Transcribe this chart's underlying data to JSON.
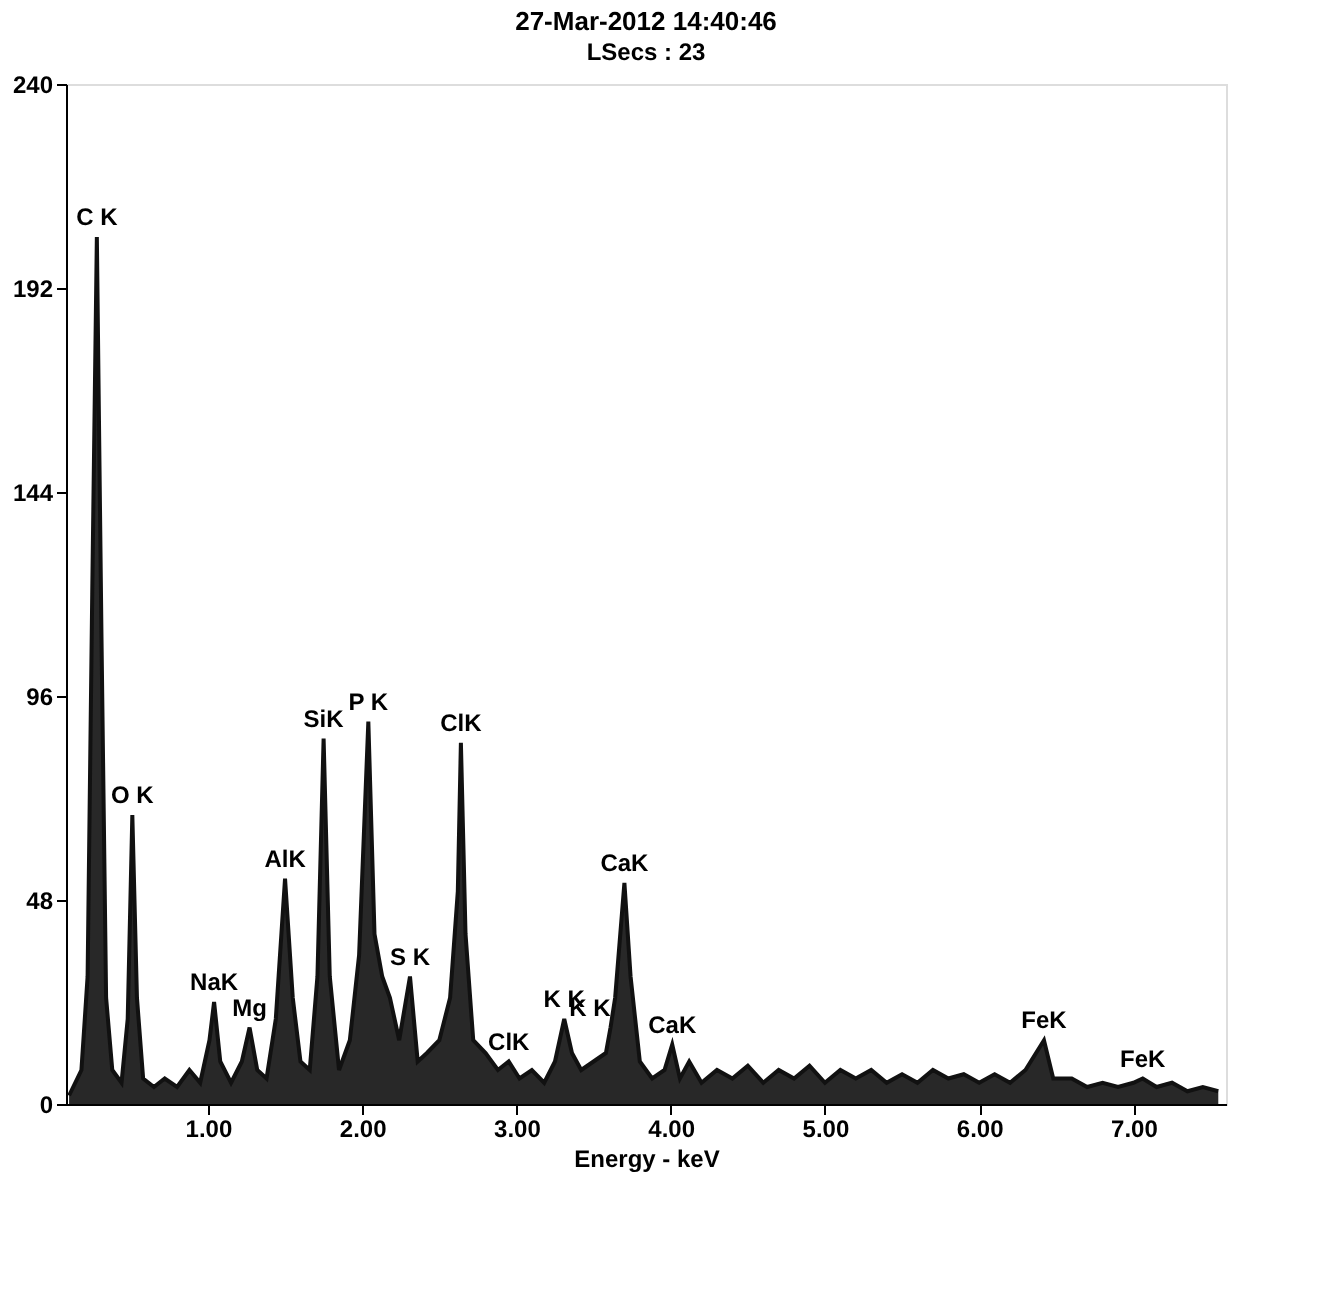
{
  "chart_data": {
    "type": "area",
    "title": "27-Mar-2012 14:40:46",
    "subtitle": "LSecs : 23",
    "xlabel": "Energy - keV",
    "xlim": [
      0.08,
      7.6
    ],
    "xticks": [
      {
        "value": 1,
        "label": "1.00"
      },
      {
        "value": 2,
        "label": "2.00"
      },
      {
        "value": 3,
        "label": "3.00"
      },
      {
        "value": 4,
        "label": "4.00"
      },
      {
        "value": 5,
        "label": "5.00"
      },
      {
        "value": 6,
        "label": "6.00"
      },
      {
        "value": 7,
        "label": "7.00"
      }
    ],
    "ylim": [
      0,
      240
    ],
    "yticks": [
      0,
      48,
      96,
      144,
      192,
      240
    ],
    "grid": false,
    "series": [
      {
        "color": "#111111",
        "x": [
          0.1,
          0.18,
          0.22,
          0.25,
          0.28,
          0.31,
          0.34,
          0.38,
          0.44,
          0.48,
          0.51,
          0.54,
          0.58,
          0.65,
          0.72,
          0.8,
          0.88,
          0.95,
          1.01,
          1.04,
          1.08,
          1.15,
          1.22,
          1.27,
          1.32,
          1.38,
          1.44,
          1.5,
          1.55,
          1.6,
          1.66,
          1.71,
          1.75,
          1.79,
          1.85,
          1.92,
          1.98,
          2.04,
          2.08,
          2.13,
          2.18,
          2.24,
          2.31,
          2.36,
          2.42,
          2.5,
          2.57,
          2.62,
          2.64,
          2.67,
          2.72,
          2.8,
          2.88,
          2.95,
          3.02,
          3.1,
          3.18,
          3.25,
          3.31,
          3.36,
          3.42,
          3.5,
          3.58,
          3.61,
          3.64,
          3.7,
          3.74,
          3.8,
          3.88,
          3.96,
          4.01,
          4.06,
          4.12,
          4.2,
          4.3,
          4.4,
          4.5,
          4.6,
          4.7,
          4.8,
          4.9,
          5.0,
          5.1,
          5.2,
          5.3,
          5.4,
          5.5,
          5.6,
          5.7,
          5.8,
          5.9,
          6.0,
          6.1,
          6.2,
          6.3,
          6.42,
          6.48,
          6.6,
          6.7,
          6.8,
          6.9,
          7.0,
          7.06,
          7.15,
          7.25,
          7.35,
          7.45,
          7.55
        ],
        "values": [
          2,
          8,
          30,
          120,
          204,
          110,
          25,
          8,
          5,
          20,
          68,
          25,
          6,
          4,
          6,
          4,
          8,
          5,
          15,
          24,
          10,
          5,
          10,
          18,
          8,
          6,
          20,
          53,
          25,
          10,
          8,
          30,
          86,
          30,
          8,
          15,
          35,
          90,
          40,
          30,
          25,
          15,
          30,
          10,
          12,
          15,
          25,
          50,
          85,
          40,
          15,
          12,
          8,
          10,
          6,
          8,
          5,
          10,
          20,
          12,
          8,
          10,
          12,
          18,
          25,
          52,
          30,
          10,
          6,
          8,
          14,
          6,
          10,
          5,
          8,
          6,
          9,
          5,
          8,
          6,
          9,
          5,
          8,
          6,
          8,
          5,
          7,
          5,
          8,
          6,
          7,
          5,
          7,
          5,
          8,
          15,
          6,
          6,
          4,
          5,
          4,
          5,
          6,
          4,
          5,
          3,
          4,
          3
        ]
      }
    ],
    "annotations": [
      {
        "text": "C K",
        "x": 0.28,
        "y": 204
      },
      {
        "text": "O K",
        "x": 0.51,
        "y": 68
      },
      {
        "text": "NaK",
        "x": 1.04,
        "y": 24
      },
      {
        "text": "Mg",
        "x": 1.27,
        "y": 18
      },
      {
        "text": "AlK",
        "x": 1.5,
        "y": 53
      },
      {
        "text": "SiK",
        "x": 1.75,
        "y": 86
      },
      {
        "text": "P K",
        "x": 2.04,
        "y": 90
      },
      {
        "text": "S K",
        "x": 2.31,
        "y": 30
      },
      {
        "text": "ClK",
        "x": 2.64,
        "y": 85
      },
      {
        "text": "ClK",
        "x": 2.95,
        "y": 10
      },
      {
        "text": "K K",
        "x": 3.31,
        "y": 20
      },
      {
        "text": "K K",
        "x": 3.61,
        "y": 18
      },
      {
        "text": "CaK",
        "x": 3.7,
        "y": 52
      },
      {
        "text": "CaK",
        "x": 4.01,
        "y": 14
      },
      {
        "text": "FeK",
        "x": 6.42,
        "y": 15
      },
      {
        "text": "FeK",
        "x": 7.06,
        "y": 6
      }
    ]
  }
}
